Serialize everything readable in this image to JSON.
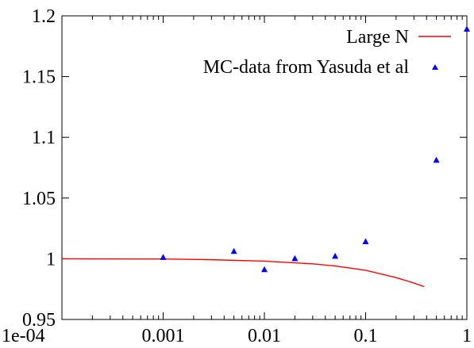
{
  "chart_data": {
    "type": "line",
    "title": "",
    "xlabel": "",
    "ylabel": "",
    "x_scale": "log",
    "xlim": [
      0.0001,
      1
    ],
    "ylim": [
      0.95,
      1.2
    ],
    "x_ticks": [
      {
        "value": 0.0001,
        "label": "1e-04"
      },
      {
        "value": 0.001,
        "label": "0.001"
      },
      {
        "value": 0.01,
        "label": "0.01"
      },
      {
        "value": 0.1,
        "label": "0.1"
      },
      {
        "value": 1,
        "label": "1"
      }
    ],
    "y_ticks": [
      {
        "value": 0.95,
        "label": "0.95"
      },
      {
        "value": 1.0,
        "label": "1"
      },
      {
        "value": 1.05,
        "label": "1.05"
      },
      {
        "value": 1.1,
        "label": "1.1"
      },
      {
        "value": 1.15,
        "label": "1.15"
      },
      {
        "value": 1.2,
        "label": "1.2"
      }
    ],
    "grid": false,
    "legend_position": "top-right",
    "series": [
      {
        "name": "Large N",
        "kind": "line",
        "color": "#ff0000",
        "points": [
          [
            0.0001,
            1.0
          ],
          [
            0.001,
            0.9998
          ],
          [
            0.003,
            0.9992
          ],
          [
            0.01,
            0.998
          ],
          [
            0.03,
            0.9958
          ],
          [
            0.05,
            0.994
          ],
          [
            0.1,
            0.9905
          ],
          [
            0.2,
            0.9845
          ],
          [
            0.3,
            0.98
          ],
          [
            0.38,
            0.977
          ]
        ]
      },
      {
        "name": "MC-data from Yasuda et al",
        "kind": "scatter",
        "marker": "triangle",
        "color": "#0000ff",
        "points": [
          [
            0.001,
            1.001
          ],
          [
            0.005,
            1.006
          ],
          [
            0.01,
            0.991
          ],
          [
            0.02,
            1.0
          ],
          [
            0.05,
            1.002
          ],
          [
            0.1,
            1.014
          ],
          [
            0.5,
            1.081
          ],
          [
            1.0,
            1.189
          ]
        ]
      }
    ]
  }
}
